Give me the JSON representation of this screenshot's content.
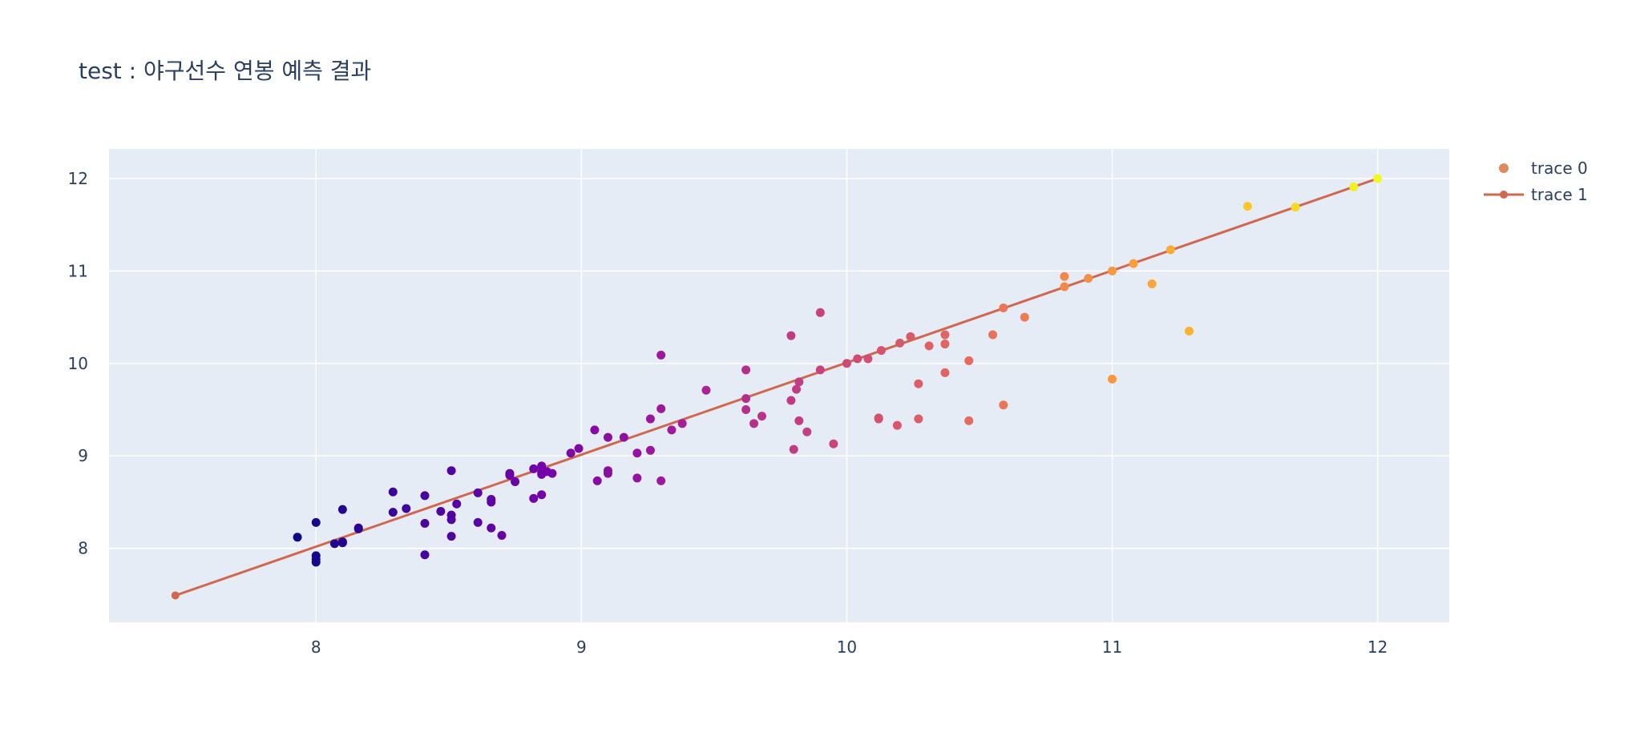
{
  "chart_data": {
    "type": "scatter",
    "title": "test : 야구선수 연봉 예측 결과",
    "xlabel": "",
    "ylabel": "",
    "xlim": [
      7.22,
      12.27
    ],
    "ylim": [
      7.2,
      12.32
    ],
    "x_ticks": [
      8,
      9,
      10,
      11,
      12
    ],
    "y_ticks": [
      8,
      9,
      10,
      11,
      12
    ],
    "x_tick_labels": [
      "8",
      "9",
      "10",
      "11",
      "12"
    ],
    "y_tick_labels": [
      "8",
      "9",
      "10",
      "11",
      "12"
    ],
    "grid": true,
    "legend_position": "top-right",
    "colors": {
      "plot_bg": "#e5ecf6",
      "grid": "#ffffff",
      "text": "#2a3f5f",
      "line": "#d0674f",
      "legend_marker_trace0": "#df8a5a",
      "colorscale": [
        "#0d0887",
        "#46039f",
        "#7201a8",
        "#9c179e",
        "#bd3786",
        "#d8576b",
        "#ed7953",
        "#fb9f3a",
        "#fdca26",
        "#f0f921"
      ]
    },
    "series": [
      {
        "name": "trace 0",
        "mode": "markers",
        "color_by": "x",
        "points": [
          [
            7.93,
            8.12
          ],
          [
            8.0,
            8.28
          ],
          [
            8.0,
            7.92
          ],
          [
            8.0,
            7.88
          ],
          [
            8.0,
            7.85
          ],
          [
            8.07,
            8.05
          ],
          [
            8.1,
            8.07
          ],
          [
            8.1,
            8.06
          ],
          [
            8.1,
            8.42
          ],
          [
            8.16,
            8.22
          ],
          [
            8.16,
            8.21
          ],
          [
            8.29,
            8.61
          ],
          [
            8.29,
            8.39
          ],
          [
            8.34,
            8.43
          ],
          [
            8.41,
            8.57
          ],
          [
            8.41,
            8.27
          ],
          [
            8.41,
            7.93
          ],
          [
            8.47,
            8.4
          ],
          [
            8.51,
            8.36
          ],
          [
            8.51,
            8.31
          ],
          [
            8.51,
            8.13
          ],
          [
            8.51,
            8.84
          ],
          [
            8.53,
            8.48
          ],
          [
            8.61,
            8.6
          ],
          [
            8.61,
            8.28
          ],
          [
            8.66,
            8.53
          ],
          [
            8.66,
            8.5
          ],
          [
            8.66,
            8.22
          ],
          [
            8.7,
            8.14
          ],
          [
            8.73,
            8.81
          ],
          [
            8.73,
            8.79
          ],
          [
            8.75,
            8.72
          ],
          [
            8.82,
            8.86
          ],
          [
            8.82,
            8.54
          ],
          [
            8.85,
            8.89
          ],
          [
            8.85,
            8.58
          ],
          [
            8.85,
            8.82
          ],
          [
            8.85,
            8.8
          ],
          [
            8.87,
            8.83
          ],
          [
            8.89,
            8.81
          ],
          [
            8.96,
            9.03
          ],
          [
            8.99,
            9.08
          ],
          [
            9.05,
            9.28
          ],
          [
            9.06,
            8.73
          ],
          [
            9.1,
            9.2
          ],
          [
            9.1,
            8.84
          ],
          [
            9.1,
            8.81
          ],
          [
            9.16,
            9.2
          ],
          [
            9.21,
            9.03
          ],
          [
            9.21,
            8.76
          ],
          [
            9.26,
            9.4
          ],
          [
            9.26,
            9.06
          ],
          [
            9.3,
            9.51
          ],
          [
            9.3,
            10.09
          ],
          [
            9.3,
            8.73
          ],
          [
            9.34,
            9.28
          ],
          [
            9.38,
            9.35
          ],
          [
            9.47,
            9.71
          ],
          [
            9.62,
            9.93
          ],
          [
            9.62,
            9.62
          ],
          [
            9.62,
            9.5
          ],
          [
            9.65,
            9.35
          ],
          [
            9.68,
            9.43
          ],
          [
            9.79,
            9.6
          ],
          [
            9.79,
            10.3
          ],
          [
            9.8,
            9.07
          ],
          [
            9.81,
            9.72
          ],
          [
            9.82,
            9.8
          ],
          [
            9.82,
            9.38
          ],
          [
            9.85,
            9.26
          ],
          [
            9.9,
            9.93
          ],
          [
            9.9,
            10.55
          ],
          [
            9.95,
            9.13
          ],
          [
            10.0,
            10.0
          ],
          [
            10.04,
            10.05
          ],
          [
            10.08,
            10.05
          ],
          [
            10.12,
            9.41
          ],
          [
            10.12,
            9.4
          ],
          [
            10.13,
            10.14
          ],
          [
            10.19,
            9.33
          ],
          [
            10.2,
            10.22
          ],
          [
            10.24,
            10.29
          ],
          [
            10.27,
            9.78
          ],
          [
            10.27,
            9.4
          ],
          [
            10.31,
            10.19
          ],
          [
            10.37,
            9.9
          ],
          [
            10.37,
            10.21
          ],
          [
            10.37,
            10.31
          ],
          [
            10.46,
            10.03
          ],
          [
            10.46,
            9.38
          ],
          [
            10.55,
            10.31
          ],
          [
            10.59,
            10.6
          ],
          [
            10.59,
            9.55
          ],
          [
            10.67,
            10.5
          ],
          [
            10.82,
            10.94
          ],
          [
            10.82,
            10.83
          ],
          [
            10.91,
            10.92
          ],
          [
            11.0,
            9.83
          ],
          [
            11.0,
            11.0
          ],
          [
            11.08,
            11.08
          ],
          [
            11.15,
            10.86
          ],
          [
            11.22,
            11.23
          ],
          [
            11.29,
            10.35
          ],
          [
            11.51,
            11.7
          ],
          [
            11.69,
            11.69
          ],
          [
            11.91,
            11.91
          ],
          [
            12.0,
            12.0
          ]
        ]
      },
      {
        "name": "trace 1",
        "mode": "lines+markers",
        "points": [
          [
            7.47,
            7.49
          ],
          [
            12.0,
            12.0
          ]
        ]
      }
    ]
  }
}
